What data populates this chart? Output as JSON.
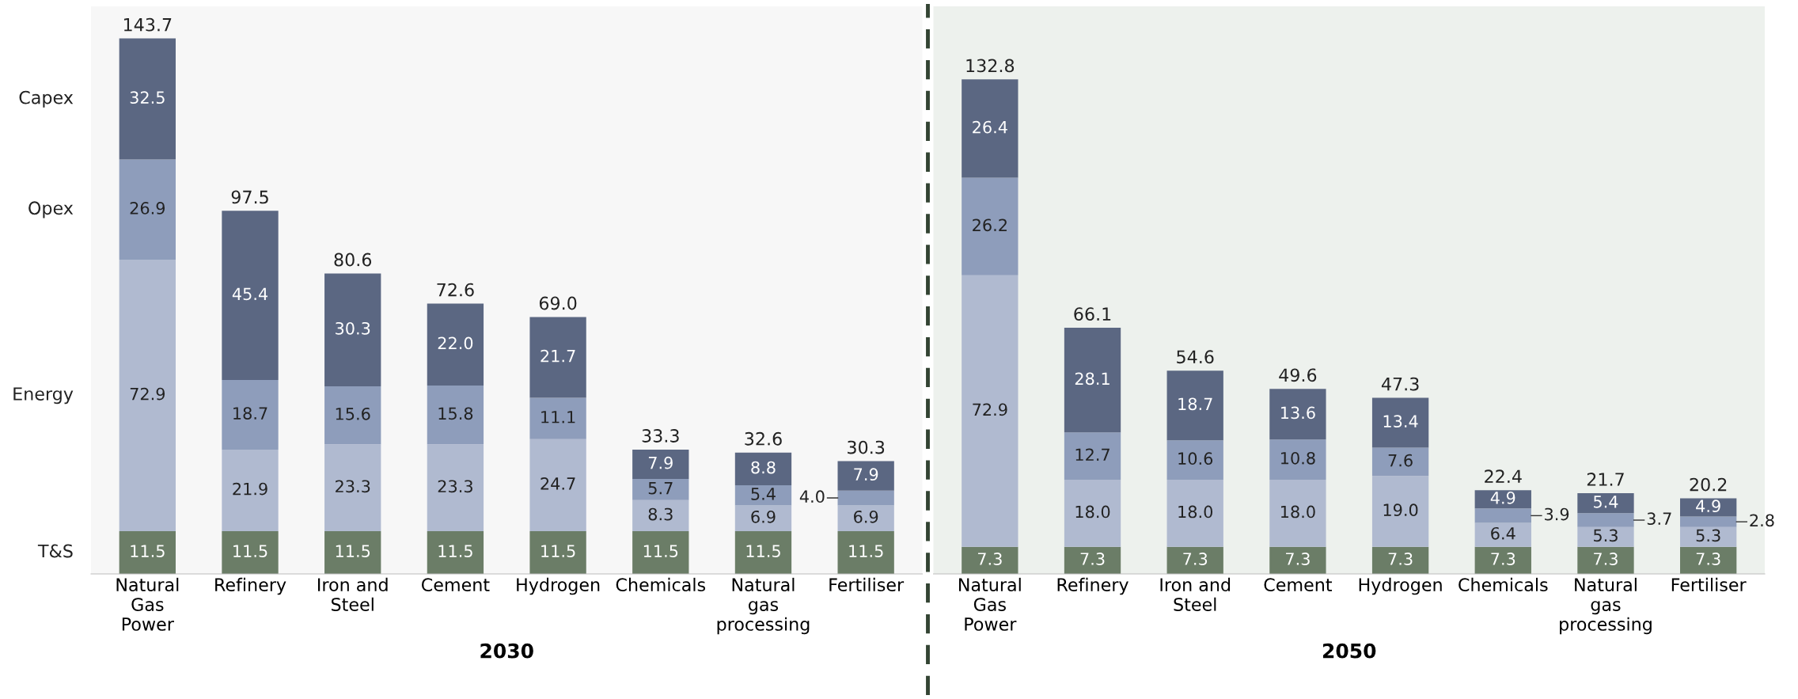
{
  "chart_data": [
    {
      "type": "bar",
      "stacked": true,
      "xlabel": "2030",
      "tick_labels": "x",
      "legend": false,
      "grid": false,
      "categories": [
        "Natural Gas Power",
        "Refinery",
        "Iron and Steel",
        "Cement",
        "Hydrogen",
        "Chemicals",
        "Natural gas processing",
        "Fertiliser"
      ],
      "series": [
        {
          "name": "T&S",
          "color": "#6b7d67",
          "values": [
            11.5,
            11.5,
            11.5,
            11.5,
            11.5,
            11.5,
            11.5,
            11.5
          ],
          "value_labels": [
            "11.5",
            "11.5",
            "11.5",
            "11.5",
            "11.5",
            "11.5",
            "11.5",
            "11.5"
          ]
        },
        {
          "name": "Energy",
          "color": "#b0bad0",
          "values": [
            72.9,
            21.9,
            23.3,
            23.3,
            24.7,
            8.3,
            6.9,
            6.9
          ],
          "value_labels": [
            "72.9",
            "21.9",
            "23.3",
            "23.3",
            "24.7",
            "8.3",
            "6.9",
            "6.9"
          ]
        },
        {
          "name": "Opex",
          "color": "#8e9dbb",
          "values": [
            26.9,
            18.7,
            15.6,
            15.8,
            11.1,
            5.7,
            5.4,
            4.0
          ],
          "value_labels": [
            "26.9",
            "18.7",
            "15.6",
            "15.8",
            "11.1",
            "5.7",
            "5.4",
            "4.0"
          ]
        },
        {
          "name": "Capex",
          "color": "#5b6782",
          "values": [
            32.5,
            45.4,
            30.3,
            22.0,
            21.7,
            7.9,
            8.8,
            7.9
          ],
          "value_labels": [
            "32.5",
            "45.4",
            "30.3",
            "22.0",
            "21.7",
            "7.9",
            "8.8",
            "7.9"
          ]
        }
      ],
      "totals": [
        "143.7",
        "97.5",
        "80.6",
        "72.6",
        "69.0",
        "33.3",
        "32.6",
        "30.3"
      ]
    },
    {
      "type": "bar",
      "stacked": true,
      "xlabel": "2050",
      "tick_labels": "x",
      "legend": false,
      "grid": false,
      "categories": [
        "Natural Gas Power",
        "Refinery",
        "Iron and Steel",
        "Cement",
        "Hydrogen",
        "Chemicals",
        "Natural gas processing",
        "Fertiliser"
      ],
      "series": [
        {
          "color": "#6b7d67",
          "values": [
            7.3,
            7.3,
            7.3,
            7.3,
            7.3,
            7.3,
            7.3,
            7.3
          ],
          "value_labels": [
            "7.3",
            "7.3",
            "7.3",
            "7.3",
            "7.3",
            "7.3",
            "7.3",
            "7.3"
          ]
        },
        {
          "color": "#b0bad0",
          "values": [
            72.9,
            18.0,
            18.0,
            18.0,
            19.0,
            6.4,
            5.3,
            5.3
          ],
          "value_labels": [
            "72.9",
            "18.0",
            "18.0",
            "18.0",
            "19.0",
            "6.4",
            "5.3",
            "5.3"
          ]
        },
        {
          "color": "#8e9dbb",
          "values": [
            26.2,
            12.7,
            10.6,
            10.8,
            7.6,
            3.9,
            3.7,
            2.8
          ],
          "value_labels": [
            "26.2",
            "12.7",
            "10.6",
            "10.8",
            "7.6",
            "3.9",
            "3.7",
            "2.8"
          ]
        },
        {
          "color": "#5b6782",
          "values": [
            26.4,
            28.1,
            18.7,
            13.6,
            13.4,
            4.9,
            5.4,
            4.9
          ],
          "value_labels": [
            "26.4",
            "28.1",
            "18.7",
            "13.6",
            "13.4",
            "4.9",
            "5.4",
            "4.9"
          ]
        }
      ],
      "totals": [
        "132.8",
        "66.1",
        "54.6",
        "49.6",
        "47.3",
        "22.4",
        "21.7",
        "20.2"
      ]
    }
  ]
}
